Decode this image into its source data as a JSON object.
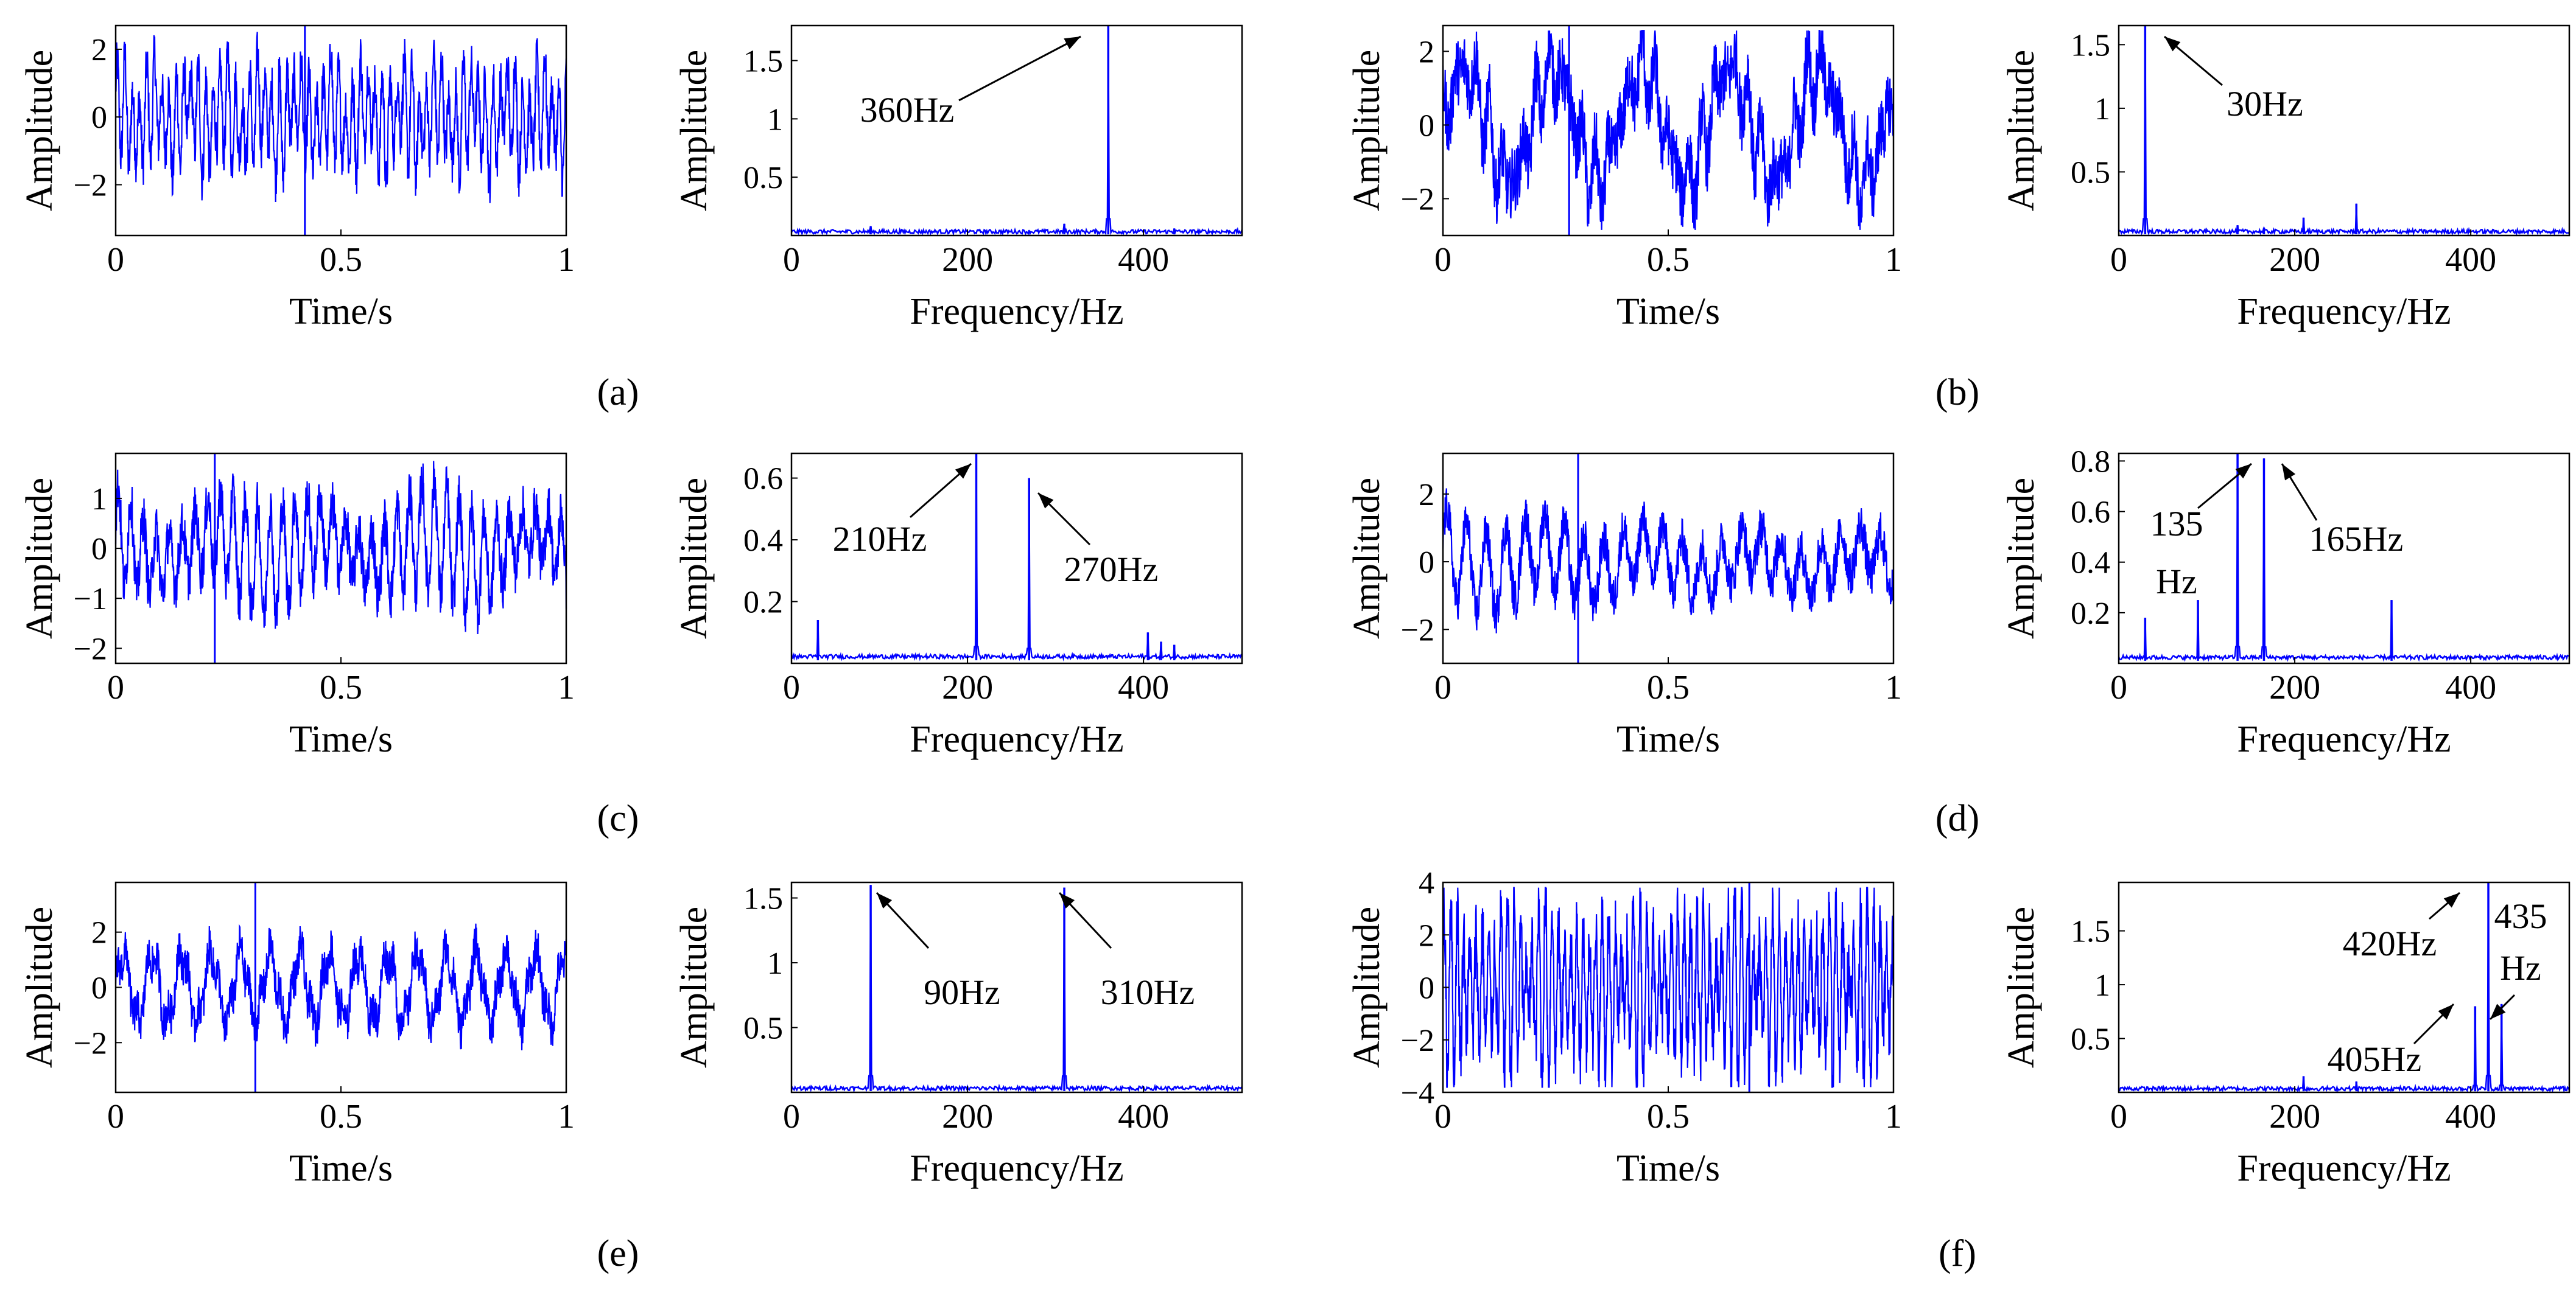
{
  "colors": {
    "signal": "#0000ff",
    "axis": "#000000",
    "background": "#ffffff"
  },
  "labels": {
    "time_axis": "Time/s",
    "freq_axis": "Frequency/Hz",
    "amplitude": "Amplitude"
  },
  "chart_data": [
    {
      "panel": "(a)",
      "time": {
        "type": "line",
        "xlim": [
          0,
          1
        ],
        "ylim": [
          -3.5,
          2.7
        ],
        "xticks": [
          "0",
          "0.5",
          "1"
        ],
        "yticks": [
          "2",
          "0",
          "−2"
        ],
        "yvals": [
          2,
          0,
          -2
        ],
        "amplitude": 1.6,
        "freqs": [
          360,
          90,
          310
        ]
      },
      "spectrum": {
        "type": "line",
        "xlim": [
          0,
          512
        ],
        "ylim": [
          0,
          1.8
        ],
        "xticks": [
          "0",
          "200",
          "400"
        ],
        "yticks": [
          "0.5",
          "1",
          "1.5"
        ],
        "yvals": [
          0.5,
          1,
          1.5
        ],
        "peaks": [
          {
            "f": 360,
            "a": 1.8
          },
          {
            "f": 90,
            "a": 0.08
          },
          {
            "f": 310,
            "a": 0.1
          },
          {
            "f": 435,
            "a": 0.06
          }
        ],
        "annotations": [
          {
            "text": "360Hz"
          }
        ]
      }
    },
    {
      "panel": "(b)",
      "time": {
        "type": "line",
        "xlim": [
          0,
          1
        ],
        "ylim": [
          -3,
          2.7
        ],
        "xticks": [
          "0",
          "0.5",
          "1"
        ],
        "yticks": [
          "2",
          "0",
          "−2"
        ],
        "yvals": [
          2,
          0,
          -2
        ],
        "amplitude": 2.0,
        "freqs": [
          30,
          210,
          270
        ]
      },
      "spectrum": {
        "type": "line",
        "xlim": [
          0,
          512
        ],
        "ylim": [
          0,
          1.65
        ],
        "xticks": [
          "0",
          "200",
          "400"
        ],
        "yticks": [
          "0.5",
          "1",
          "1.5"
        ],
        "yvals": [
          0.5,
          1,
          1.5
        ],
        "peaks": [
          {
            "f": 30,
            "a": 1.65
          },
          {
            "f": 135,
            "a": 0.08
          },
          {
            "f": 165,
            "a": 0.06
          },
          {
            "f": 210,
            "a": 0.14
          },
          {
            "f": 270,
            "a": 0.25
          }
        ],
        "annotations": [
          {
            "text": "30Hz"
          }
        ]
      }
    },
    {
      "panel": "(c)",
      "time": {
        "type": "line",
        "xlim": [
          0,
          1
        ],
        "ylim": [
          -2.3,
          1.9
        ],
        "xticks": [
          "0",
          "0.5",
          "1"
        ],
        "yticks": [
          "1",
          "0",
          "−1",
          "−2"
        ],
        "yvals": [
          1,
          0,
          -1,
          -2
        ],
        "amplitude": 1.1,
        "freqs": [
          210,
          270,
          30
        ]
      },
      "spectrum": {
        "type": "line",
        "xlim": [
          0,
          512
        ],
        "ylim": [
          0,
          0.68
        ],
        "xticks": [
          "0",
          "200",
          "400"
        ],
        "yticks": [
          "0.2",
          "0.4",
          "0.6"
        ],
        "yvals": [
          0.2,
          0.4,
          0.6
        ],
        "peaks": [
          {
            "f": 210,
            "a": 0.68
          },
          {
            "f": 270,
            "a": 0.6
          },
          {
            "f": 30,
            "a": 0.14
          },
          {
            "f": 405,
            "a": 0.1
          },
          {
            "f": 420,
            "a": 0.07
          },
          {
            "f": 435,
            "a": 0.06
          }
        ],
        "annotations": [
          {
            "text": "210Hz"
          },
          {
            "text": "270Hz"
          }
        ]
      }
    },
    {
      "panel": "(d)",
      "time": {
        "type": "line",
        "xlim": [
          0,
          1
        ],
        "ylim": [
          -3,
          3.2
        ],
        "xticks": [
          "0",
          "0.5",
          "1"
        ],
        "yticks": [
          "2",
          "0",
          "−2"
        ],
        "yvals": [
          2,
          0,
          -2
        ],
        "amplitude": 1.4,
        "freqs": [
          135,
          165,
          30
        ]
      },
      "spectrum": {
        "type": "line",
        "xlim": [
          0,
          512
        ],
        "ylim": [
          0,
          0.83
        ],
        "xticks": [
          "0",
          "200",
          "400"
        ],
        "yticks": [
          "0.2",
          "0.4",
          "0.6",
          "0.8"
        ],
        "yvals": [
          0.2,
          0.4,
          0.6,
          0.8
        ],
        "peaks": [
          {
            "f": 135,
            "a": 0.83
          },
          {
            "f": 165,
            "a": 0.81
          },
          {
            "f": 30,
            "a": 0.18
          },
          {
            "f": 90,
            "a": 0.25
          },
          {
            "f": 310,
            "a": 0.25
          }
        ],
        "annotations": [
          {
            "text": "135"
          },
          {
            "text": "Hz"
          },
          {
            "text": "165Hz"
          }
        ]
      }
    },
    {
      "panel": "(e)",
      "time": {
        "type": "line",
        "xlim": [
          0,
          1
        ],
        "ylim": [
          -3.8,
          3.8
        ],
        "xticks": [
          "0",
          "0.5",
          "1"
        ],
        "yticks": [
          "2",
          "0",
          "−2"
        ],
        "yvals": [
          2,
          0,
          -2
        ],
        "amplitude": 1.6,
        "freqs": [
          90,
          310
        ]
      },
      "spectrum": {
        "type": "line",
        "xlim": [
          0,
          512
        ],
        "ylim": [
          0,
          1.62
        ],
        "xticks": [
          "0",
          "200",
          "400"
        ],
        "yticks": [
          "0.5",
          "1",
          "1.5"
        ],
        "yvals": [
          0.5,
          1,
          1.5
        ],
        "peaks": [
          {
            "f": 90,
            "a": 1.6
          },
          {
            "f": 310,
            "a": 1.58
          },
          {
            "f": 170,
            "a": 0.04
          }
        ],
        "annotations": [
          {
            "text": "90Hz"
          },
          {
            "text": "310Hz"
          }
        ]
      }
    },
    {
      "panel": "(f)",
      "time": {
        "type": "line",
        "xlim": [
          0,
          1
        ],
        "ylim": [
          -4,
          4
        ],
        "xticks": [
          "0",
          "0.5",
          "1"
        ],
        "yticks": [
          "4",
          "2",
          "0",
          "−2",
          "−4"
        ],
        "yvals": [
          4,
          2,
          0,
          -2,
          -4
        ],
        "amplitude": 3.0,
        "freqs": [
          420,
          405,
          435
        ]
      },
      "spectrum": {
        "type": "line",
        "xlim": [
          0,
          512
        ],
        "ylim": [
          0,
          1.95
        ],
        "xticks": [
          "0",
          "200",
          "400"
        ],
        "yticks": [
          "0.5",
          "1",
          "1.5"
        ],
        "yvals": [
          0.5,
          1,
          1.5
        ],
        "peaks": [
          {
            "f": 420,
            "a": 1.95
          },
          {
            "f": 405,
            "a": 0.8
          },
          {
            "f": 435,
            "a": 0.82
          },
          {
            "f": 210,
            "a": 0.15
          },
          {
            "f": 270,
            "a": 0.1
          }
        ],
        "annotations": [
          {
            "text": "420Hz"
          },
          {
            "text": "435"
          },
          {
            "text": "Hz"
          },
          {
            "text": "405Hz"
          }
        ]
      }
    }
  ]
}
